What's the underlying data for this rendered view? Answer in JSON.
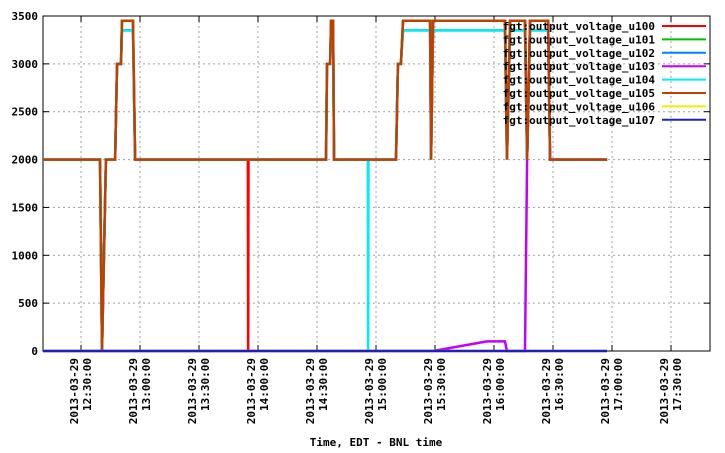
{
  "chart_data": {
    "type": "line",
    "xlabel": "Time, EDT - BNL time",
    "x": [
      "2013-03-29 12:10:40",
      "2013-03-29 12:39:40",
      "2013-03-29 12:40:40",
      "2013-03-29 12:41:40",
      "2013-03-29 12:42:40",
      "2013-03-29 12:47:20",
      "2013-03-29 12:48:20",
      "2013-03-29 12:50:20",
      "2013-03-29 12:50:50",
      "2013-03-29 12:56:25",
      "2013-03-29 12:57:30",
      "2013-03-29 13:54:50",
      "2013-03-29 13:55:00",
      "2013-03-29 13:55:10",
      "2013-03-29 14:34:35",
      "2013-03-29 14:35:05",
      "2013-03-29 14:36:40",
      "2013-03-29 14:37:10",
      "2013-03-29 14:38:10",
      "2013-03-29 14:38:40",
      "2013-03-29 14:55:50",
      "2013-03-29 14:56:00",
      "2013-03-29 14:56:10",
      "2013-03-29 15:10:10",
      "2013-03-29 15:11:10",
      "2013-03-29 15:12:40",
      "2013-03-29 15:13:45",
      "2013-03-29 15:27:30",
      "2013-03-29 15:28:00",
      "2013-03-29 15:29:00",
      "2013-03-29 15:56:25",
      "2013-03-29 16:05:35",
      "2013-03-29 16:06:35",
      "2013-03-29 16:08:10",
      "2013-03-29 16:15:45",
      "2013-03-29 16:16:50",
      "2013-03-29 16:18:20",
      "2013-03-29 16:27:30",
      "2013-03-29 16:28:30",
      "2013-03-29 16:57:30"
    ],
    "series": [
      {
        "name": "fgt:output_voltage_u100",
        "color": "#ff0000",
        "values": [
          2000,
          2000,
          0,
          1000,
          2000,
          2000,
          3000,
          3000,
          3450,
          3450,
          2000,
          2000,
          0,
          2000,
          2000,
          3000,
          3000,
          3450,
          3450,
          2000,
          2000,
          2000,
          2000,
          2000,
          3000,
          3000,
          3450,
          3450,
          2000,
          3450,
          3450,
          3450,
          2000,
          3450,
          3450,
          2000,
          3450,
          3450,
          2000,
          2000
        ]
      },
      {
        "name": "fgt:output_voltage_u101",
        "color": "#00c000",
        "values": [
          2000,
          2000,
          0,
          1000,
          2000,
          2000,
          3000,
          3000,
          3450,
          3450,
          2000,
          2000,
          2000,
          2000,
          2000,
          3000,
          3000,
          3450,
          3450,
          2000,
          2000,
          2000,
          2000,
          2000,
          3000,
          3000,
          3450,
          3450,
          2000,
          3450,
          3450,
          3450,
          2000,
          3450,
          3450,
          2000,
          3450,
          3450,
          2000,
          2000
        ]
      },
      {
        "name": "fgt:output_voltage_u102",
        "color": "#0080ff",
        "values": [
          2000,
          2000,
          0,
          1000,
          2000,
          2000,
          3000,
          3000,
          3350,
          3350,
          2000,
          2000,
          2000,
          2000,
          2000,
          3000,
          3000,
          3350,
          3350,
          2000,
          2000,
          2000,
          2000,
          2000,
          3000,
          3000,
          3350,
          3350,
          2000,
          3350,
          3350,
          3350,
          2000,
          3350,
          3350,
          2000,
          3350,
          3350,
          2000,
          2000
        ]
      },
      {
        "name": "fgt:output_voltage_u103",
        "color": "#c000ff",
        "values": [
          0,
          0,
          0,
          0,
          0,
          0,
          0,
          0,
          0,
          0,
          0,
          0,
          0,
          0,
          0,
          0,
          0,
          0,
          0,
          0,
          0,
          0,
          0,
          0,
          0,
          0,
          0,
          0,
          0,
          0,
          100,
          100,
          0,
          0,
          0,
          2000,
          3450,
          3450,
          2000,
          2000
        ]
      },
      {
        "name": "fgt:output_voltage_u104",
        "color": "#00eeee",
        "values": [
          2000,
          2000,
          0,
          1000,
          2000,
          2000,
          3000,
          3000,
          3350,
          3350,
          2000,
          2000,
          2000,
          2000,
          2000,
          3000,
          3000,
          3350,
          3350,
          2000,
          2000,
          0,
          2000,
          2000,
          3000,
          3000,
          3350,
          3350,
          2000,
          3350,
          3350,
          3350,
          2000,
          3350,
          3350,
          2000,
          3350,
          3350,
          2000,
          2000
        ]
      },
      {
        "name": "fgt:output_voltage_u105",
        "color": "#c04000",
        "values": [
          2000,
          2000,
          0,
          1000,
          2000,
          2000,
          3000,
          3000,
          3450,
          3450,
          2000,
          2000,
          2000,
          2000,
          2000,
          3000,
          3000,
          3450,
          3450,
          2000,
          2000,
          2000,
          2000,
          2000,
          3000,
          3000,
          3450,
          3450,
          2000,
          3450,
          3450,
          3450,
          2000,
          3450,
          3450,
          2000,
          3450,
          3450,
          2000,
          2000
        ]
      },
      {
        "name": "fgt:output_voltage_u106",
        "color": "#eeee00",
        "values": [
          0,
          0,
          0,
          0,
          0,
          0,
          0,
          0,
          0,
          0,
          0,
          0,
          0,
          0,
          0,
          0,
          0,
          0,
          0,
          0,
          0,
          0,
          0,
          0,
          0,
          0,
          0,
          0,
          0,
          0,
          0,
          0,
          0,
          0,
          0,
          0,
          0,
          0,
          0,
          0
        ]
      },
      {
        "name": "fgt:output_voltage_u107",
        "color": "#2020c0",
        "values": [
          0,
          0,
          0,
          0,
          0,
          0,
          0,
          0,
          0,
          0,
          0,
          0,
          0,
          0,
          0,
          0,
          0,
          0,
          0,
          0,
          0,
          0,
          0,
          0,
          0,
          0,
          0,
          0,
          0,
          0,
          0,
          0,
          0,
          0,
          0,
          0,
          0,
          0,
          0,
          0
        ]
      }
    ],
    "xlim": [
      "2013-03-29 12:10:40",
      "2013-03-29 17:49:50"
    ],
    "xticks": [
      "2013-03-29 12:30:00",
      "2013-03-29 13:00:00",
      "2013-03-29 13:30:00",
      "2013-03-29 14:00:00",
      "2013-03-29 14:30:00",
      "2013-03-29 15:00:00",
      "2013-03-29 15:30:00",
      "2013-03-29 16:00:00",
      "2013-03-29 16:30:00",
      "2013-03-29 17:00:00",
      "2013-03-29 17:30:00"
    ],
    "ylim": [
      0,
      3500
    ],
    "yticks": [
      0,
      500,
      1000,
      1500,
      2000,
      2500,
      3000,
      3500
    ],
    "grid": true,
    "legend": "top-right"
  }
}
